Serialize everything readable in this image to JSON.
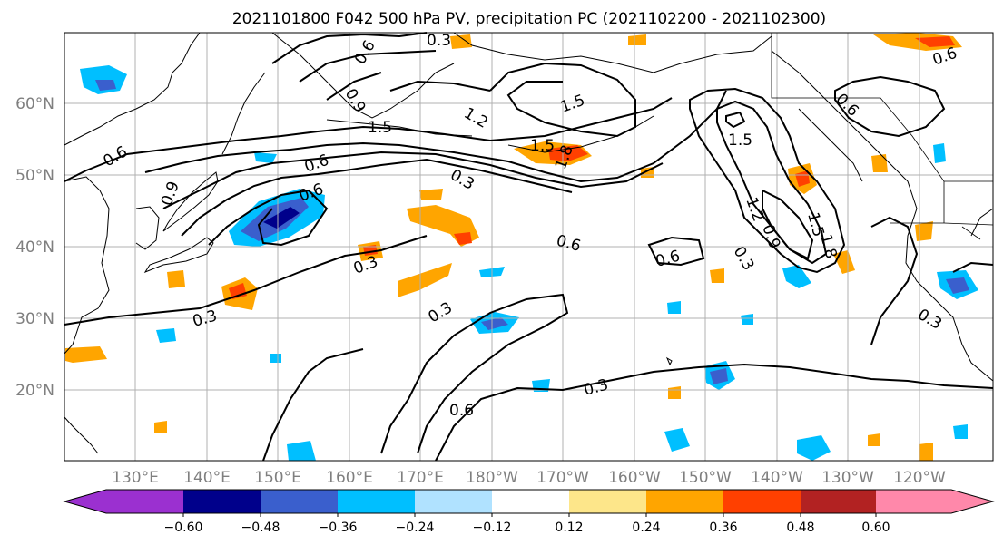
{
  "title": "2021101800 F042 500 hPa PV, precipitation PC (2021102200 - 2021102300)",
  "lat_labels": [
    "60°N",
    "50°N",
    "40°N",
    "30°N",
    "20°N"
  ],
  "lon_labels": [
    "130°E",
    "140°E",
    "150°E",
    "160°E",
    "170°E",
    "180°W",
    "170°W",
    "160°W",
    "150°W",
    "140°W",
    "130°W",
    "120°W"
  ],
  "colorbar": {
    "tick_labels": [
      "−0.60",
      "−0.48",
      "−0.36",
      "−0.24",
      "−0.12",
      "0.12",
      "0.24",
      "0.36",
      "0.48",
      "0.60"
    ],
    "colors": [
      "#9b30d0",
      "#00008b",
      "#3a5fcd",
      "#00bfff",
      "#b0e2ff",
      "#ffffff",
      "#fde68a",
      "#ffa500",
      "#ff4000",
      "#b22222",
      "#ff88aa"
    ]
  },
  "contour_labels": [
    {
      "text": "0.3"
    },
    {
      "text": "0.6"
    },
    {
      "text": "0.9"
    },
    {
      "text": "1.2"
    },
    {
      "text": "1.5"
    },
    {
      "text": "1.5"
    },
    {
      "text": "1.5"
    },
    {
      "text": "1.8"
    },
    {
      "text": "0.3"
    },
    {
      "text": "0.6"
    },
    {
      "text": "0.6"
    },
    {
      "text": "0.9"
    },
    {
      "text": "0.6"
    },
    {
      "text": "0.6"
    },
    {
      "text": "0.3"
    },
    {
      "text": "0.6"
    },
    {
      "text": "0.3"
    },
    {
      "text": "0.3"
    },
    {
      "text": "0.6"
    },
    {
      "text": "0.3"
    },
    {
      "text": "1.5"
    },
    {
      "text": "1.2"
    },
    {
      "text": "0.9"
    },
    {
      "text": "0.3"
    },
    {
      "text": "1.5"
    },
    {
      "text": "1.8"
    },
    {
      "text": "0.6"
    },
    {
      "text": "0.6"
    },
    {
      "text": "0.3"
    }
  ]
}
